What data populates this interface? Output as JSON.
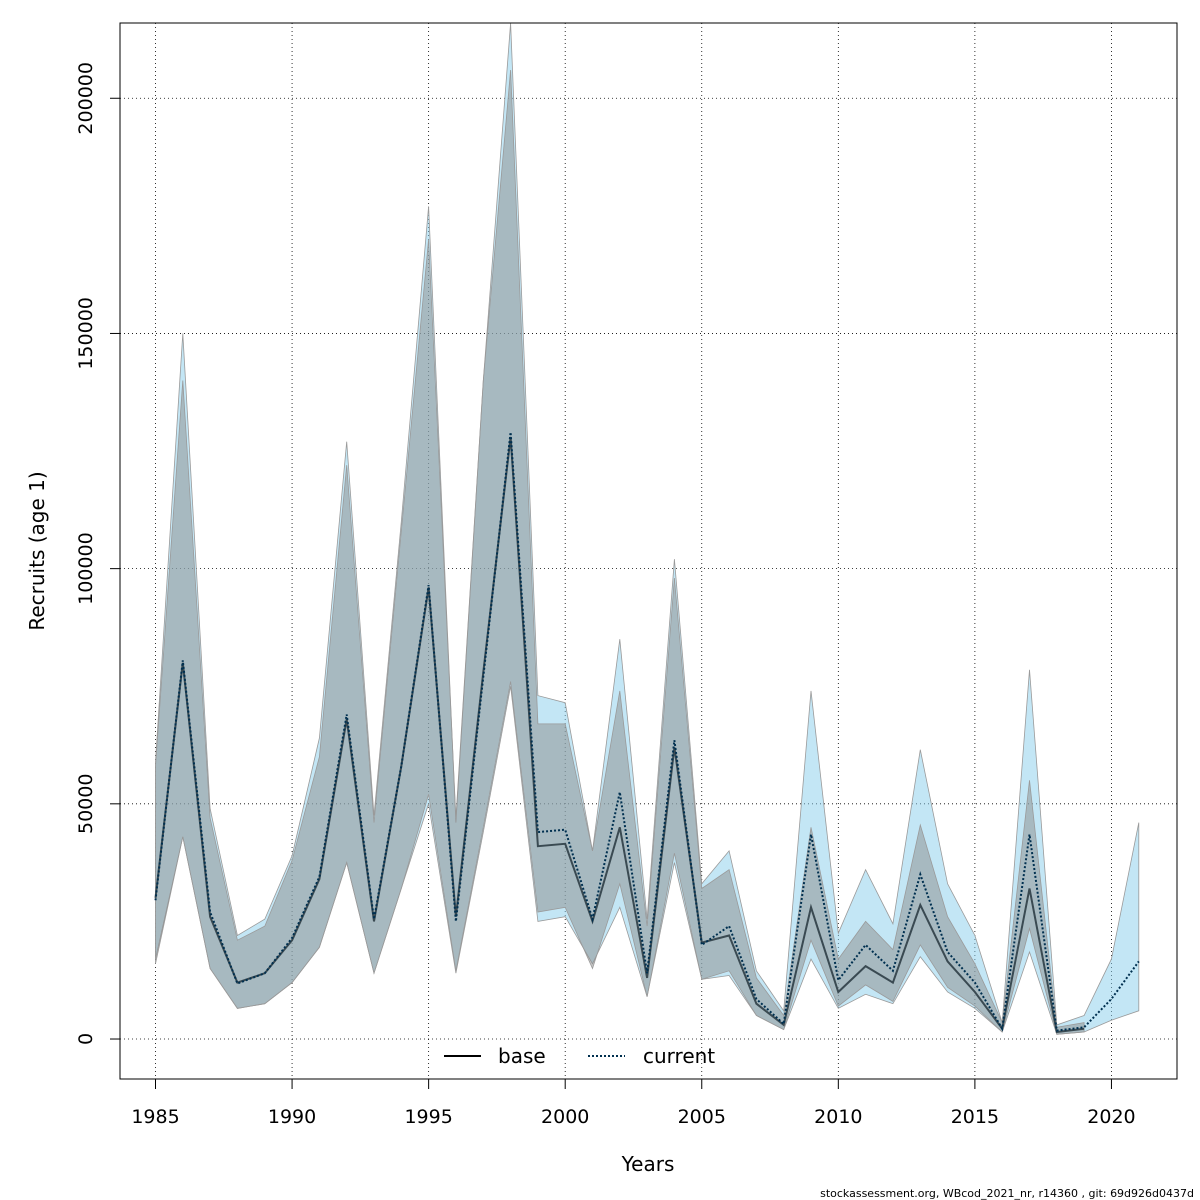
{
  "chart_data": {
    "type": "line",
    "title": "",
    "xlabel": "Years",
    "ylabel": "Recruits (age 1)",
    "xlim": [
      1983.7,
      2022.4
    ],
    "ylim": [
      -8500,
      216000
    ],
    "x_ticks": [
      1985,
      1990,
      1995,
      2000,
      2005,
      2010,
      2015,
      2020
    ],
    "y_ticks": [
      0,
      50000,
      100000,
      150000,
      200000
    ],
    "grid": true,
    "legend_position": "bottom-center",
    "legend": [
      {
        "name": "base",
        "style": "solid",
        "color": "#000000"
      },
      {
        "name": "current",
        "style": "dotted",
        "color": "#00304f"
      }
    ],
    "colors": {
      "base_band": "#8c8c8c",
      "current_band": "#87ceeb",
      "current_line": "#003050"
    },
    "x": [
      1985,
      1986,
      1987,
      1988,
      1989,
      1990,
      1991,
      1992,
      1993,
      1994,
      1995,
      1996,
      1997,
      1998,
      1999,
      2000,
      2001,
      2002,
      2003,
      2004,
      2005,
      2006,
      2007,
      2008,
      2009,
      2010,
      2011,
      2012,
      2013,
      2014,
      2015,
      2016,
      2017,
      2018,
      2019,
      2020,
      2021
    ],
    "series": [
      {
        "name": "base",
        "values": [
          30000,
          80000,
          26000,
          12000,
          14000,
          21000,
          34000,
          68000,
          25000,
          58000,
          96000,
          26000,
          78000,
          128000,
          41000,
          41500,
          25000,
          45000,
          13000,
          62000,
          20500,
          22000,
          7500,
          3000,
          28000,
          10000,
          15500,
          12000,
          28500,
          16500,
          10000,
          2200,
          32000,
          1500,
          2200,
          null,
          null
        ],
        "lower": [
          16000,
          43000,
          15000,
          6500,
          7500,
          12000,
          19500,
          37500,
          14000,
          32000,
          52000,
          14500,
          45000,
          76000,
          27000,
          28000,
          15000,
          33000,
          9000,
          39500,
          12700,
          14500,
          5000,
          2000,
          21000,
          7000,
          11500,
          8000,
          20000,
          11000,
          7000,
          1500,
          23500,
          1000,
          1500,
          null,
          null
        ],
        "upper": [
          58000,
          140000,
          47000,
          21000,
          24000,
          38000,
          60000,
          122000,
          46000,
          108000,
          170000,
          47000,
          140000,
          206000,
          67000,
          67000,
          40000,
          74000,
          24000,
          98000,
          32000,
          36000,
          13000,
          5000,
          45000,
          17000,
          25000,
          19000,
          45500,
          26000,
          16000,
          3500,
          55000,
          2500,
          3500,
          null,
          null
        ]
      },
      {
        "name": "current",
        "values": [
          29500,
          80500,
          27000,
          11800,
          14000,
          21500,
          34500,
          69000,
          25500,
          58000,
          96500,
          25000,
          77000,
          129000,
          44000,
          44500,
          25500,
          52500,
          14000,
          63500,
          20000,
          24000,
          8500,
          3200,
          43500,
          12500,
          20000,
          14500,
          35000,
          18500,
          12000,
          2200,
          43500,
          1800,
          2500,
          8500,
          16500
        ],
        "lower": [
          17000,
          43000,
          15000,
          6500,
          7500,
          12000,
          19500,
          37500,
          14000,
          32000,
          50000,
          14000,
          44000,
          75000,
          25000,
          26000,
          16000,
          28000,
          9000,
          37500,
          12700,
          13500,
          5000,
          2000,
          17000,
          6500,
          9500,
          7500,
          17500,
          10000,
          6500,
          1500,
          18500,
          1000,
          1500,
          4000,
          6000
        ],
        "upper": [
          59000,
          150000,
          49000,
          22000,
          25500,
          39000,
          64000,
          127000,
          47500,
          110000,
          177000,
          46000,
          140000,
          216000,
          73000,
          71500,
          40000,
          85000,
          25500,
          102000,
          33000,
          40000,
          14500,
          6000,
          74000,
          22500,
          36000,
          24500,
          61500,
          33000,
          22000,
          3500,
          78500,
          3000,
          5000,
          17000,
          46000
        ]
      }
    ]
  },
  "footer": {
    "note": "stockassessment.org, WBcod_2021_nr, r14360 , git: 69d926d0437d"
  }
}
